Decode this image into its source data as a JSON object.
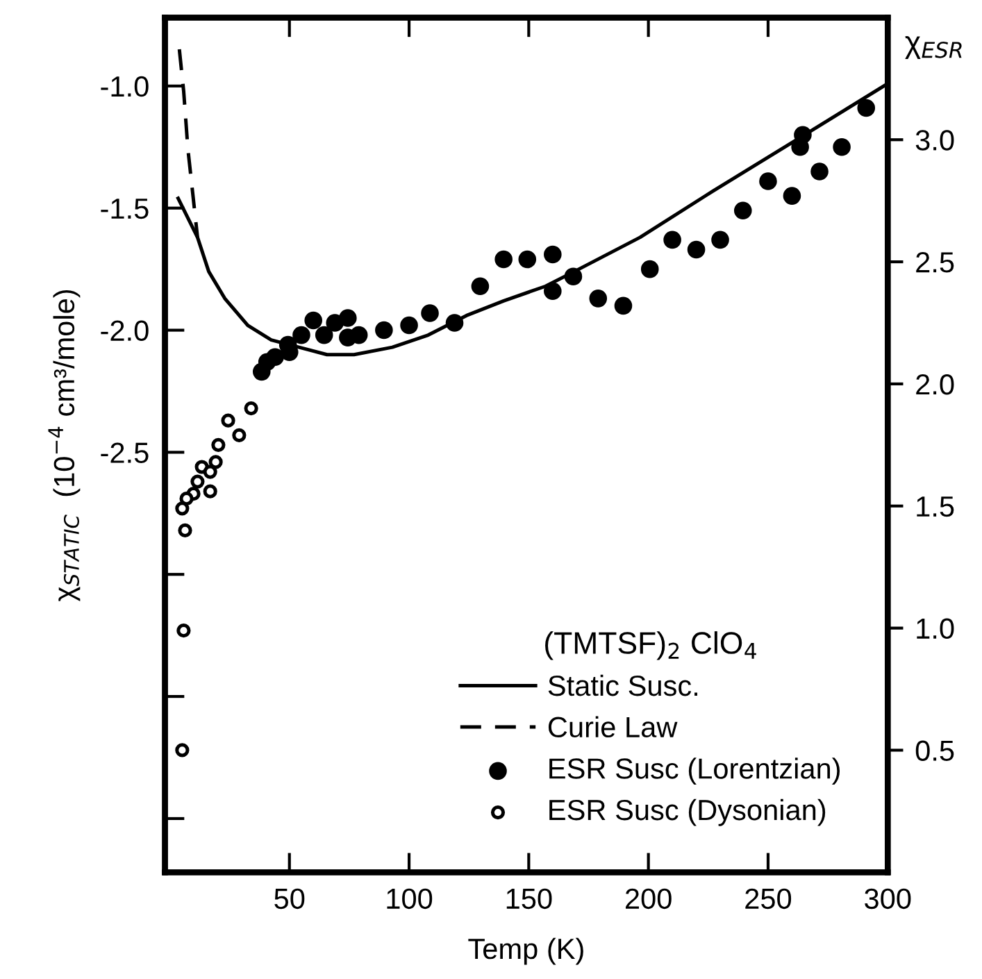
{
  "chart_data": {
    "type": "line",
    "xlabel": "Temp (K)",
    "ylabel": "χ$_{STATIC}$  (10$^{−4}$ cm³/mole)",
    "y2label": "χ$_{ESR}$",
    "legend_title": "(TMTSF)$_{2}$ ClO$_{4}$",
    "xlim": [
      -2,
      300
    ],
    "xticks": [
      50,
      100,
      150,
      200,
      250,
      300
    ],
    "ylim": [
      -4.22,
      -0.72
    ],
    "yticks": [
      {
        "value": -1.0,
        "label": "-1.0"
      },
      {
        "value": -1.5,
        "label": "-1.5"
      },
      {
        "value": -2.0,
        "label": "-2.0"
      },
      {
        "value": -2.5,
        "label": "-2.5"
      },
      {
        "value": -3.0,
        "label": null
      },
      {
        "value": -3.5,
        "label": null
      },
      {
        "value": -4.0,
        "label": null
      }
    ],
    "y2lim": [
      0,
      3.5
    ],
    "y2ticks": [
      0.5,
      {
        "value": 1.0,
        "label": "1.0"
      },
      1.5,
      {
        "value": 2.0,
        "label": "2.0"
      },
      2.5,
      {
        "value": 3.0,
        "label": "3.0"
      }
    ],
    "grid": false,
    "legend": "bottom right",
    "series": [
      {
        "name": "Static Susc.",
        "line_style": "solid",
        "marker": "none",
        "color": "#000000",
        "x": [
          3.5,
          11.6,
          16.3,
          23,
          32.6,
          42.4,
          54,
          65.7,
          77,
          93,
          108,
          124,
          139.5,
          157,
          169,
          196.5,
          227,
          262,
          300
        ],
        "values": [
          -1.46,
          -1.62,
          -1.76,
          -1.87,
          -1.98,
          -2.04,
          -2.07,
          -2.1,
          -2.1,
          -2.07,
          -2.02,
          -1.94,
          -1.88,
          -1.82,
          -1.76,
          -1.62,
          -1.43,
          -1.22,
          -0.99
        ]
      },
      {
        "name": "Curie Law",
        "type": "line",
        "line_style": "dashed",
        "marker": "none",
        "color": "#000000",
        "x": [
          4,
          5.8,
          7.6,
          11.6
        ],
        "values": [
          -0.85,
          -1.02,
          -1.26,
          -1.62
        ]
      },
      {
        "name": "ESR Susc (Lorentzian)",
        "type": "scatter",
        "axis": "y2",
        "marker": "circle",
        "color": "#000000",
        "x": [
          38.4,
          40.7,
          44,
          49.4,
          50,
          55,
          60,
          64.5,
          69,
          74.4,
          74.4,
          79,
          89.5,
          100,
          108.7,
          119,
          129.7,
          139.5,
          149.4,
          160,
          160,
          168.6,
          179,
          189.5,
          200.6,
          210,
          220,
          230,
          239.5,
          250,
          260,
          263.4,
          264.5,
          271.5,
          280.8,
          291
        ],
        "values": [
          2.05,
          2.09,
          2.11,
          2.16,
          2.13,
          2.2,
          2.26,
          2.2,
          2.25,
          2.27,
          2.19,
          2.2,
          2.22,
          2.24,
          2.29,
          2.25,
          2.4,
          2.51,
          2.51,
          2.53,
          2.38,
          2.44,
          2.35,
          2.32,
          2.47,
          2.59,
          2.55,
          2.59,
          2.71,
          2.83,
          2.77,
          2.97,
          3.02,
          2.87,
          2.97,
          3.13
        ]
      },
      {
        "name": "ESR Susc (Dysonian)",
        "type": "scatter",
        "axis": "y2",
        "marker": "open circle",
        "color": "#000000",
        "x": [
          34,
          24.4,
          29,
          20.3,
          19.2,
          13.4,
          16.9,
          11.6,
          16.9,
          9.9,
          7,
          5.2,
          6.4,
          5.8,
          5.2
        ],
        "values": [
          1.9,
          1.85,
          1.79,
          1.75,
          1.68,
          1.66,
          1.64,
          1.6,
          1.56,
          1.55,
          1.53,
          1.49,
          1.4,
          0.99,
          0.5
        ]
      }
    ]
  }
}
